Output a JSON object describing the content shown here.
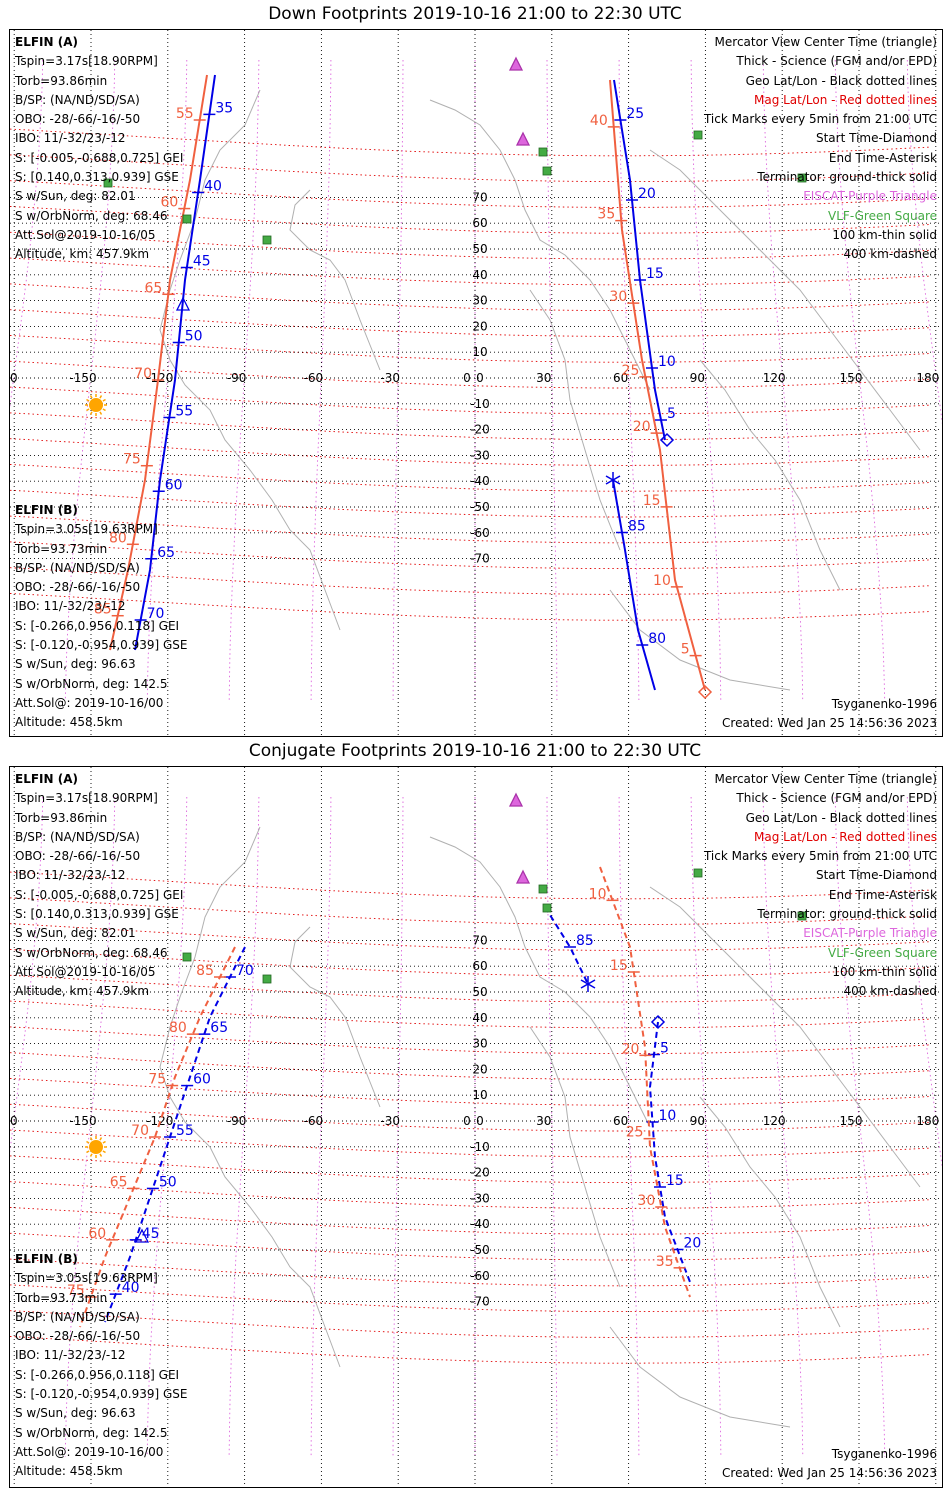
{
  "titles": {
    "down": "Down Footprints 2019-10-16 21:00 to 22:30 UTC",
    "conj": "Conjugate Footprints 2019-10-16 21:00 to 22:30 UTC"
  },
  "colors": {
    "elfin_a": "#0000e6",
    "elfin_b": "#f06040",
    "mag_grid": "#e00000",
    "geo_grid": "#000000",
    "meridian": "#dd66dd",
    "coast": "#b0b0b0",
    "sun": "#ffa500",
    "station_eiscat": "#dd66dd",
    "station_vlf": "#44aa44"
  },
  "elfin_a_info": {
    "name": "ELFIN (A)",
    "lines": [
      "Tspin=3.17s[18.90RPM]",
      "Torb=93.86min",
      "B/SP: (NA/ND/SD/SA)",
      "OBO: -28/-66/-16/-50",
      "IBO: 11/-32/23/-12",
      "S: [-0.005,-0.688,0.725] GEI",
      "S: [0.140,0.313,0.939] GSE",
      "S w/Sun, deg: 82.01",
      "S w/OrbNorm, deg: 68.46",
      "Att.Sol@2019-10-16/05",
      "Altitude, km: 457.9km"
    ]
  },
  "elfin_b_info": {
    "name": "ELFIN (B)",
    "lines": [
      "Tspin=3.05s[19.63RPM]",
      "Torb=93.73min",
      "B/SP: (NA/ND/SD/SA)",
      "OBO: -28/-66/-16/-50",
      "IBO: 11/-32/23/-12",
      "S: [-0.266,0.956,0.118] GEI",
      "S: [-0.120,-0.954,0.939] GSE",
      "S w/Sun, deg: 96.63",
      "S w/OrbNorm, deg: 142.5",
      "Att.Sol@: 2019-10-16/00",
      "Altitude: 458.5km"
    ]
  },
  "legend": [
    {
      "text": "Mercator View Center Time (triangle)",
      "color": "#000000"
    },
    {
      "text": "Thick - Science (FGM and/or EPD)",
      "color": "#000000"
    },
    {
      "text": "Geo Lat/Lon - Black dotted lines",
      "color": "#000000"
    },
    {
      "text": "Mag Lat/Lon - Red dotted lines",
      "color": "#e00000"
    },
    {
      "text": "Tick Marks every 5min from 21:00 UTC",
      "color": "#000000"
    },
    {
      "text": "Start Time-Diamond",
      "color": "#000000"
    },
    {
      "text": "End Time-Asterisk",
      "color": "#000000"
    },
    {
      "text": "Terminator: ground-thick solid",
      "color": "#000000"
    },
    {
      "text": "EISCAT-Purple Triangle",
      "color": "#dd66dd"
    },
    {
      "text": "VLF-Green Square",
      "color": "#44aa44"
    },
    {
      "text": "100 km-thin solid",
      "color": "#000000"
    },
    {
      "text": "400 km-dashed",
      "color": "#000000"
    }
  ],
  "footer": {
    "model": "Tsyganenko-1996",
    "created": "Created: Wed Jan 25 14:56:36 2023"
  },
  "axis": {
    "lon_ticks": [
      "180",
      "-150",
      "-120",
      "-90",
      "-60",
      "-30",
      "0",
      "30",
      "60",
      "90",
      "120",
      "150",
      "180"
    ],
    "lat_ticks": [
      "70",
      "60",
      "50",
      "40",
      "30",
      "20",
      "10",
      "0",
      "-10",
      "-20",
      "-30",
      "-40",
      "-50",
      "-60",
      "-70"
    ]
  },
  "down_tracks": {
    "a_west": {
      "ticks": [
        "35",
        "40",
        "45",
        "50",
        "55",
        "60",
        "65",
        "70"
      ]
    },
    "b_west": {
      "ticks": [
        "55",
        "60",
        "65",
        "70",
        "75",
        "80",
        "85"
      ]
    },
    "a_east": {
      "ticks": [
        "25",
        "20",
        "15",
        "10",
        "5",
        "85",
        "80"
      ]
    },
    "b_east": {
      "ticks": [
        "40",
        "35",
        "30",
        "25",
        "20",
        "15",
        "10",
        "5"
      ]
    }
  },
  "conj_tracks": {
    "a_west": {
      "ticks": [
        "70",
        "65",
        "60",
        "55",
        "50",
        "45",
        "40"
      ]
    },
    "b_west": {
      "ticks": [
        "85",
        "80",
        "75",
        "70",
        "65",
        "60",
        "75"
      ]
    },
    "a_east": {
      "ticks": [
        "85",
        "5",
        "10",
        "15",
        "20"
      ]
    },
    "b_east": {
      "ticks": [
        "10",
        "15",
        "20",
        "25",
        "30",
        "35"
      ]
    }
  }
}
